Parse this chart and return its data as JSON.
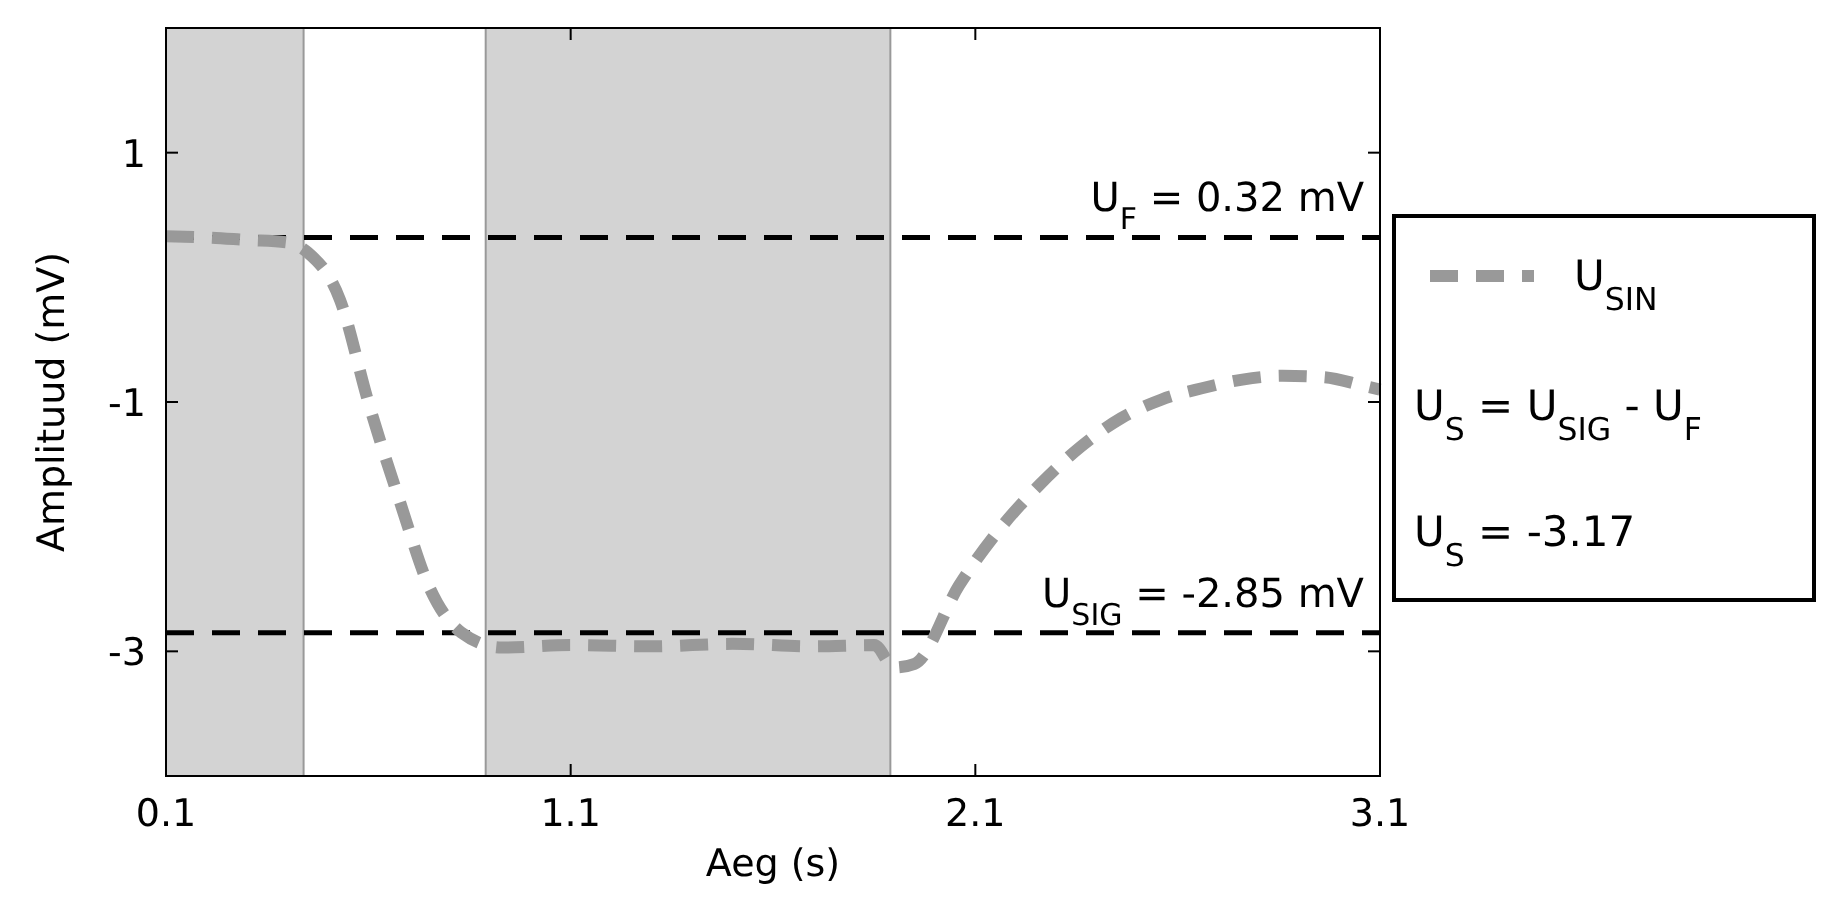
{
  "chart_data": {
    "type": "line",
    "xlabel": "Aeg (s)",
    "ylabel": "Amplituud (mV)",
    "xlim": [
      0.1,
      3.1
    ],
    "xticks": [
      0.1,
      1.1,
      2.1,
      3.1
    ],
    "ylim": [
      -4,
      2
    ],
    "yticks": [
      1,
      -1,
      -3
    ],
    "line_style": "dashed",
    "legend": "right",
    "grid": false,
    "series": [
      {
        "name": "U$_{SIN}$",
        "color": "#999999",
        "x": [
          0.1,
          0.2,
          0.3,
          0.4,
          0.45,
          0.53,
          0.6,
          0.68,
          0.75,
          0.83,
          0.93,
          1.1,
          1.3,
          1.5,
          1.7,
          1.85,
          1.9,
          1.95,
          2.06,
          2.16,
          2.26,
          2.36,
          2.46,
          2.56,
          2.66,
          2.76,
          2.86,
          2.96,
          3.06,
          3.1
        ],
        "values": [
          0.33,
          0.32,
          0.3,
          0.28,
          0.2,
          -0.18,
          -1,
          -1.82,
          -2.48,
          -2.85,
          -2.97,
          -2.95,
          -2.96,
          -2.94,
          -2.96,
          -2.95,
          -3.13,
          -3.1,
          -2.47,
          -2.02,
          -1.66,
          -1.36,
          -1.13,
          -0.98,
          -0.89,
          -0.82,
          -0.79,
          -0.8,
          -0.87,
          -0.9
        ]
      }
    ],
    "ref_lines": [
      {
        "axis": "y",
        "value": 0.32,
        "label": "U$_{F}$ = 0.32 mV",
        "color": "#000000",
        "line_style": "dashed"
      },
      {
        "axis": "y",
        "value": -2.85,
        "label": "U$_{SIG}$ = -2.85 mV",
        "color": "#000000",
        "line_style": "dashed"
      }
    ],
    "bands": [
      {
        "axis": "x",
        "from": 0.1,
        "to": 0.44,
        "color": "#d3d3d3"
      },
      {
        "axis": "x",
        "from": 0.89,
        "to": 1.89,
        "color": "#d3d3d3"
      }
    ],
    "annotations": [
      "U$_{S}$ = U$_{SIG}$ - U$_{F}$",
      "U$_{S}$ = -3.17"
    ]
  }
}
